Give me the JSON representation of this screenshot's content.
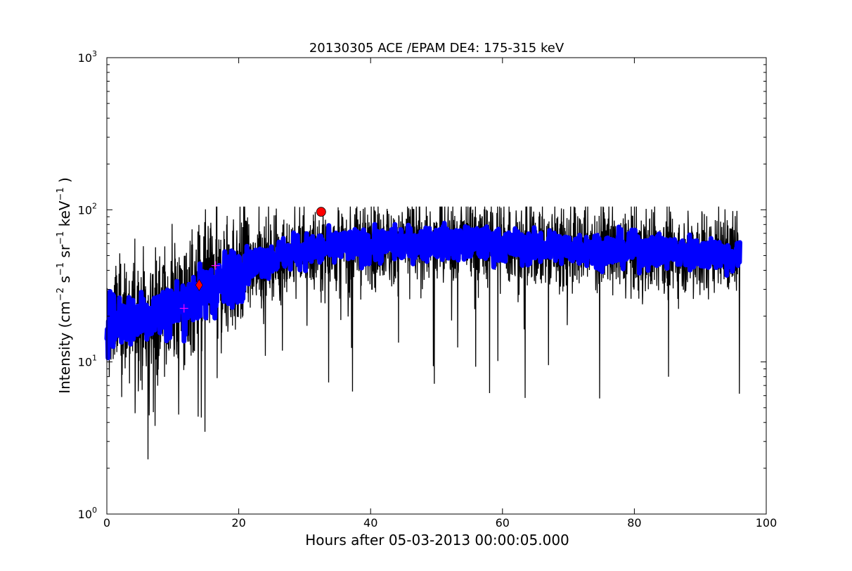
{
  "chart_data": {
    "type": "scatter",
    "title": "20130305 ACE /EPAM DE4: 175-315 keV",
    "xlabel": "Hours after 05-03-2013 00:00:05.000",
    "ylabel": {
      "prefix": "Intensity (cm",
      "exp1": "−2",
      "s": " s",
      "exp2": "−1",
      "sr": " sr",
      "exp3": "−1",
      "kev": " keV",
      "exp4": "−1",
      "suffix": " )"
    },
    "xlim": [
      0,
      100
    ],
    "ylim": [
      1,
      1000
    ],
    "yscale": "log",
    "x_ticks": [
      "0",
      "20",
      "40",
      "60",
      "80",
      "100"
    ],
    "y_ticks": [
      {
        "base": "10",
        "exp": "0"
      },
      {
        "base": "10",
        "exp": "1"
      },
      {
        "base": "10",
        "exp": "2"
      },
      {
        "base": "10",
        "exp": "3"
      }
    ],
    "grid": false,
    "legend": "none",
    "x_max_data": 96,
    "trend": [
      [
        0,
        18
      ],
      [
        5,
        20
      ],
      [
        10,
        22
      ],
      [
        13,
        26
      ],
      [
        15,
        29
      ],
      [
        17,
        32
      ],
      [
        19,
        37
      ],
      [
        21,
        42
      ],
      [
        24,
        47
      ],
      [
        28,
        52
      ],
      [
        32,
        55
      ],
      [
        36,
        57
      ],
      [
        40,
        58
      ],
      [
        45,
        60
      ],
      [
        50,
        61
      ],
      [
        55,
        60
      ],
      [
        60,
        58
      ],
      [
        65,
        57
      ],
      [
        70,
        56
      ],
      [
        75,
        55
      ],
      [
        80,
        54
      ],
      [
        85,
        53
      ],
      [
        90,
        52
      ],
      [
        96,
        50
      ]
    ],
    "series": [
      {
        "name": "",
        "color": "#000000",
        "role": "raw-intensity",
        "style": "line"
      },
      {
        "name": "",
        "color": "#0000ff",
        "role": "smoothed-intensity",
        "style": "thick-band"
      }
    ],
    "markers": [
      {
        "shape": "plus",
        "color": "#ff00ff",
        "x": 11.7,
        "y": 22.5
      },
      {
        "shape": "diamond",
        "color": "#ff0000",
        "x": 14.0,
        "y": 32
      },
      {
        "shape": "plus",
        "color": "#ff00ff",
        "x": 16.5,
        "y": 43
      },
      {
        "shape": "circle",
        "color": "#ff0000",
        "x": 32.5,
        "y": 97
      }
    ]
  }
}
